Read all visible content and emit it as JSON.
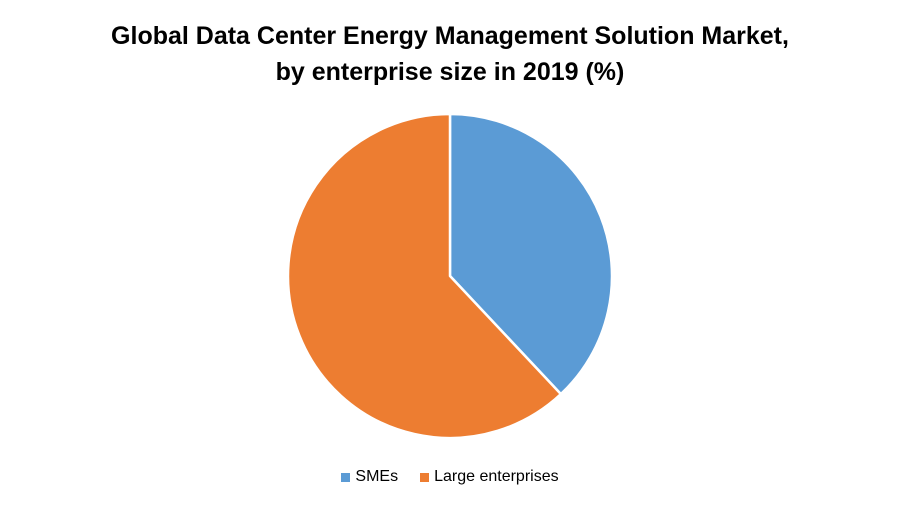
{
  "chart_data": {
    "type": "pie",
    "title_lines": [
      "Global Data Center Energy Management Solution Market,",
      "by enterprise size in 2019 (%)"
    ],
    "legend_position": "bottom",
    "slices": [
      {
        "label": "SMEs",
        "value": 38,
        "color": "#5b9bd5"
      },
      {
        "label": "Large enterprises",
        "value": 62,
        "color": "#ed7d31"
      }
    ]
  }
}
